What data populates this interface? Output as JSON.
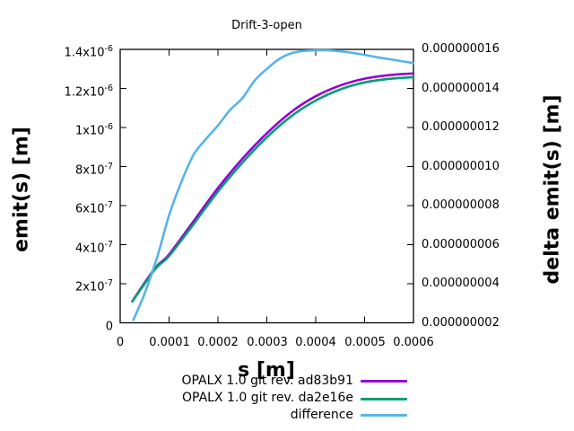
{
  "window": {
    "background": "#ffffff",
    "axis_color": "#000000"
  },
  "chart_data": {
    "type": "line",
    "title": "Drift-3-open",
    "xlabel": "s [m]",
    "ylabel": "emit(s) [m]",
    "y2label": "delta emit(s) [m]",
    "xlim": [
      0,
      0.0006
    ],
    "ylim": [
      0,
      1.4e-06
    ],
    "y2lim": [
      2e-09,
      1.6e-08
    ],
    "grid": false,
    "legend_position": "below-plot-right",
    "x_ticks": [
      {
        "value": 0,
        "label": "0"
      },
      {
        "value": 0.0001,
        "label": "0.0001"
      },
      {
        "value": 0.0002,
        "label": "0.0002"
      },
      {
        "value": 0.0003,
        "label": "0.0003"
      },
      {
        "value": 0.0004,
        "label": "0.0004"
      },
      {
        "value": 0.0005,
        "label": "0.0005"
      },
      {
        "value": 0.0006,
        "label": "0.0006"
      }
    ],
    "y_ticks_left": [
      {
        "value": 0,
        "mantissa": "0",
        "exp": ""
      },
      {
        "value": 2e-07,
        "mantissa": "2x10",
        "exp": "-7"
      },
      {
        "value": 4e-07,
        "mantissa": "4x10",
        "exp": "-7"
      },
      {
        "value": 6e-07,
        "mantissa": "6x10",
        "exp": "-7"
      },
      {
        "value": 8e-07,
        "mantissa": "8x10",
        "exp": "-7"
      },
      {
        "value": 1e-06,
        "mantissa": "1x10",
        "exp": "-6"
      },
      {
        "value": 1.2e-06,
        "mantissa": "1.2x10",
        "exp": "-6"
      },
      {
        "value": 1.4e-06,
        "mantissa": "1.4x10",
        "exp": "-6"
      }
    ],
    "y_ticks_right": [
      {
        "value": 2e-09,
        "label": "0.000000002"
      },
      {
        "value": 4e-09,
        "label": "0.000000004"
      },
      {
        "value": 6e-09,
        "label": "0.000000006"
      },
      {
        "value": 8e-09,
        "label": "0.000000008"
      },
      {
        "value": 1e-08,
        "label": "0.000000010"
      },
      {
        "value": 1.2e-08,
        "label": "0.000000012"
      },
      {
        "value": 1.4e-08,
        "label": "0.000000014"
      },
      {
        "value": 1.6e-08,
        "label": "0.000000016"
      }
    ],
    "series": [
      {
        "name": "OPALX 1.0 git rev. ad83b91",
        "axis": "left",
        "color": "#9400d3",
        "points": [
          [
            2.5e-05,
            1.1e-07
          ],
          [
            5e-05,
            2.05e-07
          ],
          [
            7.5e-05,
            2.9e-07
          ],
          [
            0.0001,
            3.5e-07
          ],
          [
            0.00015,
            5.2e-07
          ],
          [
            0.0002,
            6.9e-07
          ],
          [
            0.00025,
            8.4e-07
          ],
          [
            0.0003,
            9.7e-07
          ],
          [
            0.00035,
            1.08e-06
          ],
          [
            0.0004,
            1.16e-06
          ],
          [
            0.00045,
            1.215e-06
          ],
          [
            0.0005,
            1.25e-06
          ],
          [
            0.00055,
            1.268e-06
          ],
          [
            0.0006,
            1.277e-06
          ]
        ]
      },
      {
        "name": "OPALX 1.0 git rev. da2e16e",
        "axis": "left",
        "color": "#009e73",
        "points": [
          [
            2.5e-05,
            1.1e-07
          ],
          [
            5e-05,
            2e-07
          ],
          [
            7.5e-05,
            2.85e-07
          ],
          [
            0.0001,
            3.42e-07
          ],
          [
            0.00015,
            5.05e-07
          ],
          [
            0.0002,
            6.72e-07
          ],
          [
            0.00025,
            8.2e-07
          ],
          [
            0.0003,
            9.5e-07
          ],
          [
            0.00035,
            1.058e-06
          ],
          [
            0.0004,
            1.138e-06
          ],
          [
            0.00045,
            1.195e-06
          ],
          [
            0.0005,
            1.231e-06
          ],
          [
            0.00055,
            1.249e-06
          ],
          [
            0.0006,
            1.258e-06
          ]
        ]
      },
      {
        "name": "difference",
        "axis": "right",
        "color": "#56b4e9",
        "points": [
          [
            2.7e-05,
            2.15e-09
          ],
          [
            5e-05,
            3.5e-09
          ],
          [
            7.5e-05,
            5.3e-09
          ],
          [
            0.0001,
            7.5e-09
          ],
          [
            0.000125,
            9.2e-09
          ],
          [
            0.00015,
            1.06e-08
          ],
          [
            0.000175,
            1.14e-08
          ],
          [
            0.0002,
            1.21e-08
          ],
          [
            0.000225,
            1.29e-08
          ],
          [
            0.00025,
            1.35e-08
          ],
          [
            0.000275,
            1.44e-08
          ],
          [
            0.0003,
            1.5e-08
          ],
          [
            0.000325,
            1.55e-08
          ],
          [
            0.00035,
            1.58e-08
          ],
          [
            0.000375,
            1.592e-08
          ],
          [
            0.0004,
            1.595e-08
          ],
          [
            0.000425,
            1.595e-08
          ],
          [
            0.00045,
            1.59e-08
          ],
          [
            0.000475,
            1.582e-08
          ],
          [
            0.0005,
            1.572e-08
          ],
          [
            0.000525,
            1.56e-08
          ],
          [
            0.00055,
            1.55e-08
          ],
          [
            0.000575,
            1.54e-08
          ],
          [
            0.0006,
            1.53e-08
          ]
        ]
      }
    ]
  }
}
